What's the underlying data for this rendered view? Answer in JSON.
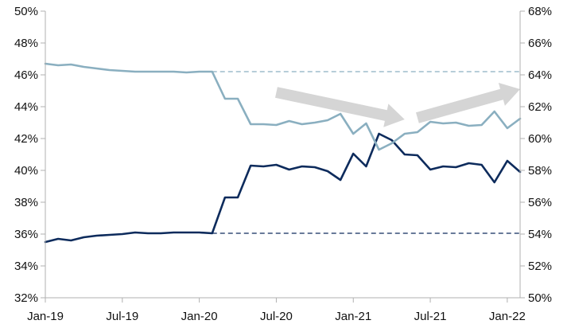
{
  "chart_data": {
    "type": "line",
    "title": "",
    "xlabel": "",
    "ylabel": "",
    "y_left": {
      "lim": [
        32,
        50
      ],
      "ticks": [
        "32%",
        "34%",
        "36%",
        "38%",
        "40%",
        "42%",
        "44%",
        "46%",
        "48%",
        "50%"
      ]
    },
    "y_right": {
      "lim": [
        50,
        68
      ],
      "ticks": [
        "50%",
        "52%",
        "54%",
        "56%",
        "58%",
        "60%",
        "62%",
        "64%",
        "66%",
        "68%"
      ]
    },
    "x_ticks": [
      "Jan-19",
      "Jul-19",
      "Jan-20",
      "Jul-20",
      "Jan-21",
      "Jul-21",
      "Jan-22"
    ],
    "x": [
      "Jan-19",
      "Feb-19",
      "Mar-19",
      "Apr-19",
      "May-19",
      "Jun-19",
      "Jul-19",
      "Aug-19",
      "Sep-19",
      "Oct-19",
      "Nov-19",
      "Dec-19",
      "Jan-20",
      "Feb-20",
      "Mar-20",
      "Apr-20",
      "May-20",
      "Jun-20",
      "Jul-20",
      "Aug-20",
      "Sep-20",
      "Oct-20",
      "Nov-20",
      "Dec-20",
      "Jan-21",
      "Feb-21",
      "Mar-21",
      "Apr-21",
      "May-21",
      "Jun-21",
      "Jul-21",
      "Aug-21",
      "Sep-21",
      "Oct-21",
      "Nov-21",
      "Dec-21",
      "Jan-22",
      "Feb-22"
    ],
    "grid": false,
    "colors": {
      "dark": "#0d2b5c",
      "light": "#8aafc0",
      "arrow": "#d5d5d5",
      "axis": "#b0b0b0"
    },
    "series": [
      {
        "axis": "left",
        "color": "#0d2b5c",
        "values": [
          35.5,
          35.7,
          35.6,
          35.8,
          35.9,
          35.95,
          36.0,
          36.1,
          36.05,
          36.05,
          36.1,
          36.1,
          36.1,
          36.05,
          38.3,
          38.3,
          40.3,
          40.25,
          40.35,
          40.05,
          40.25,
          40.2,
          39.95,
          39.4,
          41.05,
          40.25,
          42.3,
          41.9,
          41.0,
          40.95,
          40.05,
          40.25,
          40.2,
          40.45,
          40.35,
          39.25,
          40.6,
          39.9
        ]
      },
      {
        "axis": "right",
        "color": "#8aafc0",
        "values": [
          64.7,
          64.6,
          64.65,
          64.5,
          64.4,
          64.3,
          64.25,
          64.2,
          64.2,
          64.2,
          64.2,
          64.15,
          64.2,
          64.2,
          62.5,
          62.5,
          60.9,
          60.9,
          60.85,
          61.1,
          60.9,
          61.0,
          61.15,
          61.55,
          60.3,
          60.95,
          59.3,
          59.7,
          60.3,
          60.4,
          61.05,
          60.95,
          61.0,
          60.8,
          60.85,
          61.7,
          60.65,
          61.25
        ]
      }
    ],
    "reference_lines": [
      {
        "axis": "right",
        "value": 64.2,
        "from": "Feb-20",
        "color": "#8aafc0",
        "style": "dashed"
      },
      {
        "axis": "left",
        "value": 36.05,
        "from": "Feb-20",
        "color": "#0d2b5c",
        "style": "dashed"
      }
    ],
    "annotations": [
      {
        "type": "arrow",
        "from": {
          "x": "Jul-20",
          "y_left": 44.9
        },
        "to": {
          "x": "May-21",
          "y_left": 43.2
        },
        "color": "#d5d5d5"
      },
      {
        "type": "arrow",
        "from": {
          "x": "Jun-21",
          "y_left": 43.3
        },
        "to": {
          "x": "Feb-22",
          "y_left": 45.1
        },
        "color": "#d5d5d5"
      }
    ]
  }
}
